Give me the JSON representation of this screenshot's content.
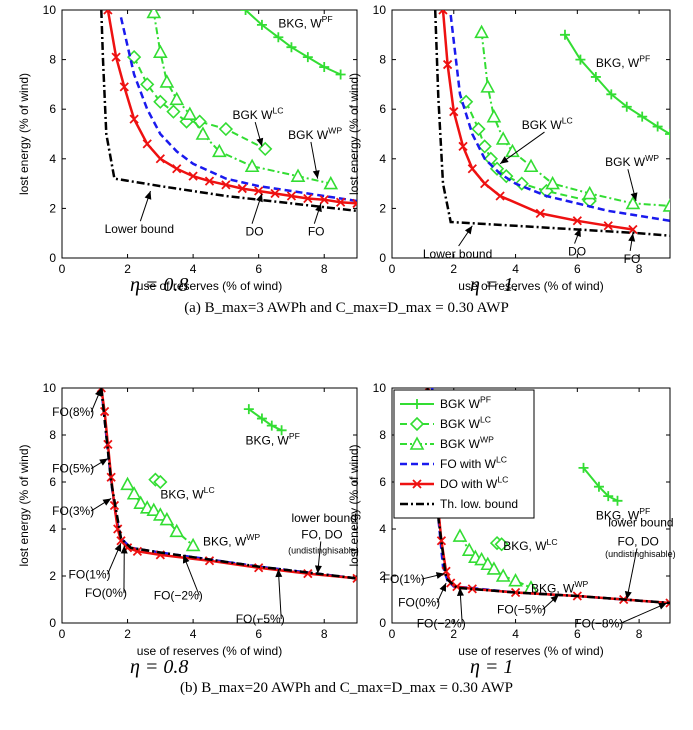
{
  "figure": {
    "caption_a": "(a)  B_max=3 AWPh and C_max=D_max = 0.30 AWP",
    "caption_b": "(b)  B_max=20 AWPh and C_max=D_max = 0.30 AWP",
    "eta_labels": [
      "η = 0.8",
      "η = 1.",
      "η = 0.8",
      "η = 1"
    ]
  },
  "colors": {
    "pf": "#33dd33",
    "lc": "#33dd33",
    "wp": "#33dd33",
    "fo": "#1a1aee",
    "do": "#ee1111",
    "bound": "#000000"
  },
  "chart_data": [
    {
      "type": "line",
      "panel": "a-eta0.8",
      "xlabel": "use of reserves (% of wind)",
      "ylabel": "lost energy (% of wind)",
      "xlim": [
        0,
        9
      ],
      "ylim": [
        0,
        10
      ],
      "xticks": [
        0,
        2,
        4,
        6,
        8
      ],
      "yticks": [
        0,
        2,
        4,
        6,
        8,
        10
      ],
      "series": [
        {
          "key": "pf",
          "x": [
            5.6,
            6.1,
            6.6,
            7.0,
            7.5,
            8.0,
            8.5
          ],
          "y": [
            10,
            9.4,
            8.9,
            8.5,
            8.1,
            7.7,
            7.4
          ]
        },
        {
          "key": "lc",
          "x": [
            2.2,
            2.6,
            3.0,
            3.4,
            3.8,
            4.2,
            5.0,
            6.2
          ],
          "y": [
            8.1,
            7.0,
            6.3,
            5.9,
            5.5,
            5.5,
            5.2,
            4.4
          ]
        },
        {
          "key": "wp",
          "x": [
            2.8,
            3.0,
            3.2,
            3.5,
            3.9,
            4.3,
            4.8,
            5.8,
            7.2,
            8.2
          ],
          "y": [
            9.9,
            8.3,
            7.1,
            6.4,
            5.8,
            5.0,
            4.3,
            3.7,
            3.3,
            3.0
          ]
        },
        {
          "key": "fo",
          "x": [
            1.8,
            2.2,
            2.6,
            3.0,
            3.5,
            4.0,
            5.0,
            6.0,
            7.0,
            8.0,
            9.0
          ],
          "y": [
            9.7,
            7.4,
            6.0,
            5.0,
            4.3,
            3.8,
            3.2,
            2.9,
            2.7,
            2.5,
            2.3
          ]
        },
        {
          "key": "do",
          "x": [
            1.4,
            1.65,
            1.9,
            2.2,
            2.6,
            3.0,
            3.5,
            4.0,
            4.5,
            5.0,
            5.5,
            6.0,
            6.5,
            7.0,
            7.5,
            8.0,
            8.5,
            9.0
          ],
          "y": [
            10,
            8.1,
            6.9,
            5.6,
            4.6,
            4.0,
            3.6,
            3.3,
            3.1,
            2.95,
            2.8,
            2.7,
            2.6,
            2.5,
            2.4,
            2.35,
            2.25,
            2.2
          ]
        },
        {
          "key": "bound",
          "x": [
            1.2,
            1.25,
            1.35,
            1.6,
            3.0,
            5.0,
            7.0,
            9.0
          ],
          "y": [
            10,
            8.0,
            5.0,
            3.2,
            2.9,
            2.5,
            2.2,
            1.9
          ]
        }
      ],
      "annotations": [
        {
          "text": "BKG, W^PF",
          "tx": 6.6,
          "ty": 9.3,
          "ax": null,
          "ay": null
        },
        {
          "text": "BGK W^LC",
          "tx": 5.2,
          "ty": 5.6,
          "ax": 6.1,
          "ay": 4.5
        },
        {
          "text": "BGK W^WP",
          "tx": 6.9,
          "ty": 4.8,
          "ax": 7.8,
          "ay": 3.2
        },
        {
          "text": "Lower bound",
          "tx": 1.3,
          "ty": 1.0,
          "ax": 2.7,
          "ay": 2.7
        },
        {
          "text": "DO",
          "tx": 5.6,
          "ty": 0.9,
          "ax": 6.1,
          "ay": 2.6
        },
        {
          "text": "FO",
          "tx": 7.5,
          "ty": 0.9,
          "ax": 7.9,
          "ay": 2.2
        }
      ]
    },
    {
      "type": "line",
      "panel": "a-eta1",
      "xlabel": "use of reserves (% of wind)",
      "ylabel": "lost energy (% of wind)",
      "xlim": [
        0,
        9
      ],
      "ylim": [
        0,
        10
      ],
      "xticks": [
        0,
        2,
        4,
        6,
        8
      ],
      "yticks": [
        0,
        2,
        4,
        6,
        8,
        10
      ],
      "series": [
        {
          "key": "pf",
          "x": [
            5.6,
            6.1,
            6.6,
            7.1,
            7.6,
            8.1,
            8.6,
            9.0
          ],
          "y": [
            9.0,
            8.0,
            7.3,
            6.6,
            6.1,
            5.7,
            5.3,
            5.0
          ]
        },
        {
          "key": "lc",
          "x": [
            2.4,
            2.8,
            3.0,
            3.2,
            3.4,
            3.7,
            4.2,
            5.0,
            6.4
          ],
          "y": [
            6.3,
            5.2,
            4.5,
            4.0,
            3.6,
            3.3,
            3.0,
            2.7,
            2.3
          ]
        },
        {
          "key": "wp",
          "x": [
            2.9,
            3.1,
            3.3,
            3.6,
            3.9,
            4.5,
            5.2,
            6.4,
            7.8,
            9.0
          ],
          "y": [
            9.1,
            6.9,
            5.7,
            4.8,
            4.3,
            3.7,
            3.0,
            2.6,
            2.2,
            2.1
          ]
        },
        {
          "key": "fo",
          "x": [
            1.9,
            2.2,
            2.6,
            3.0,
            3.5,
            4.0,
            5.0,
            6.0,
            7.0,
            8.0,
            9.0
          ],
          "y": [
            9.8,
            6.6,
            5.0,
            4.0,
            3.4,
            3.0,
            2.5,
            2.2,
            1.9,
            1.7,
            1.5
          ]
        },
        {
          "key": "do",
          "x": [
            1.65,
            1.8,
            2.0,
            2.3,
            2.6,
            3.0,
            3.5,
            4.8,
            6.0,
            7.0,
            7.8
          ],
          "y": [
            10,
            7.8,
            5.9,
            4.5,
            3.6,
            3.0,
            2.5,
            1.8,
            1.5,
            1.3,
            1.15
          ]
        },
        {
          "key": "bound",
          "x": [
            1.4,
            1.5,
            1.65,
            1.9,
            4.0,
            6.0,
            8.0,
            9.0
          ],
          "y": [
            10,
            6.5,
            3.0,
            1.45,
            1.3,
            1.15,
            1.0,
            0.9
          ]
        }
      ],
      "annotations": [
        {
          "text": "BKG, W^PF",
          "tx": 6.6,
          "ty": 7.7,
          "ax": null,
          "ay": null
        },
        {
          "text": "BGK W^LC",
          "tx": 4.2,
          "ty": 5.2,
          "ax": 3.5,
          "ay": 3.8
        },
        {
          "text": "BGK W^WP",
          "tx": 6.9,
          "ty": 3.7,
          "ax": 7.9,
          "ay": 2.3
        },
        {
          "text": "Lower bound",
          "tx": 1.0,
          "ty": 0.0,
          "ax": 2.6,
          "ay": 1.3
        },
        {
          "text": "DO",
          "tx": 5.7,
          "ty": 0.1,
          "ax": 6.1,
          "ay": 1.2
        },
        {
          "text": "FO",
          "tx": 7.5,
          "ty": -0.2,
          "ax": 7.8,
          "ay": 1.0
        }
      ]
    },
    {
      "type": "line",
      "panel": "b-eta0.8",
      "xlabel": "use of reserves (% of wind)",
      "ylabel": "lost energy (% of wind)",
      "xlim": [
        0,
        9
      ],
      "ylim": [
        0,
        10
      ],
      "xticks": [
        0,
        2,
        4,
        6,
        8
      ],
      "yticks": [
        0,
        2,
        4,
        6,
        8,
        10
      ],
      "series": [
        {
          "key": "pf",
          "x": [
            5.7,
            6.1,
            6.4,
            6.7
          ],
          "y": [
            9.1,
            8.7,
            8.4,
            8.2
          ]
        },
        {
          "key": "lc",
          "x": [
            2.85,
            3.0
          ],
          "y": [
            6.1,
            6.0
          ]
        },
        {
          "key": "wp",
          "x": [
            2.0,
            2.2,
            2.4,
            2.6,
            2.8,
            3.0,
            3.2,
            3.5,
            4.0
          ],
          "y": [
            5.9,
            5.5,
            5.1,
            4.9,
            4.8,
            4.6,
            4.4,
            3.9,
            3.3
          ]
        },
        {
          "key": "fo",
          "x": [
            1.2,
            1.5,
            1.65,
            1.8,
            2.1,
            3.0,
            4.5,
            6.0,
            7.5,
            9.0
          ],
          "y": [
            10,
            6.0,
            4.5,
            3.6,
            3.2,
            3.0,
            2.7,
            2.4,
            2.15,
            1.9
          ]
        },
        {
          "key": "do",
          "x": [
            1.2,
            1.3,
            1.4,
            1.5,
            1.6,
            1.7,
            1.8,
            2.0,
            2.3,
            3.0,
            4.5,
            6.0,
            7.5,
            9.0
          ],
          "y": [
            10,
            9.0,
            7.6,
            6.2,
            5.0,
            4.0,
            3.5,
            3.2,
            3.05,
            2.9,
            2.65,
            2.35,
            2.1,
            1.9
          ]
        },
        {
          "key": "bound",
          "x": [
            1.2,
            1.5,
            1.8,
            2.1,
            3.0,
            4.5,
            6.0,
            7.5,
            9.0
          ],
          "y": [
            10,
            6.0,
            3.6,
            3.2,
            3.0,
            2.7,
            2.4,
            2.15,
            1.9
          ]
        }
      ],
      "annotations": [
        {
          "text": "FO(8%)",
          "tx": -0.3,
          "ty": 8.8,
          "ax": 1.2,
          "ay": 10.0
        },
        {
          "text": "FO(5%)",
          "tx": -0.3,
          "ty": 6.4,
          "ax": 1.4,
          "ay": 7.0
        },
        {
          "text": "FO(3%)",
          "tx": -0.3,
          "ty": 4.6,
          "ax": 1.5,
          "ay": 5.3
        },
        {
          "text": "FO(1%)",
          "tx": 0.2,
          "ty": 1.9,
          "ax": 1.8,
          "ay": 3.4
        },
        {
          "text": "FO(0%)",
          "tx": 0.7,
          "ty": 1.1,
          "ax": 1.9,
          "ay": 3.3
        },
        {
          "text": "FO(−2%)",
          "tx": 2.8,
          "ty": 1.0,
          "ax": 3.7,
          "ay": 2.9
        },
        {
          "text": "FO(−5%)",
          "tx": 5.3,
          "ty": 0.0,
          "ax": 6.6,
          "ay": 2.3
        },
        {
          "text": "lower bound",
          "tx": 7.0,
          "ty": 4.3,
          "ax": null,
          "ay": null
        },
        {
          "text": "FO, DO",
          "tx": 7.3,
          "ty": 3.6,
          "ax": 7.8,
          "ay": 2.1
        },
        {
          "text": "(undistinghisable)",
          "tx": 6.9,
          "ty": 2.95,
          "ax": null,
          "ay": null
        },
        {
          "text": "BKG, W^LC",
          "tx": 3.0,
          "ty": 5.3,
          "ax": null,
          "ay": null
        },
        {
          "text": "BKG, W^WP",
          "tx": 4.3,
          "ty": 3.3,
          "ax": null,
          "ay": null
        },
        {
          "text": "BKG, W^PF",
          "tx": 5.6,
          "ty": 7.6,
          "ax": null,
          "ay": null
        }
      ]
    },
    {
      "type": "line",
      "panel": "b-eta1",
      "xlabel": "use of reserves (% of wind)",
      "ylabel": "lost energy (% of wind)",
      "xlim": [
        0,
        9
      ],
      "ylim": [
        0,
        10
      ],
      "xticks": [
        0,
        2,
        4,
        6,
        8
      ],
      "yticks": [
        0,
        2,
        4,
        6,
        8,
        10
      ],
      "legend_position": "top-left",
      "legend": [
        {
          "key": "pf",
          "label": "BGK W^PF"
        },
        {
          "key": "lc",
          "label": "BGK W^LC"
        },
        {
          "key": "wp",
          "label": "BGK W^WP"
        },
        {
          "key": "fo",
          "label": "FO with W^LC"
        },
        {
          "key": "do",
          "label": "DO with W^LC"
        },
        {
          "key": "bound",
          "label": "Th. low. bound"
        }
      ],
      "series": [
        {
          "key": "pf",
          "x": [
            6.2,
            6.7,
            7.0,
            7.3
          ],
          "y": [
            6.6,
            5.8,
            5.4,
            5.2
          ]
        },
        {
          "key": "lc",
          "x": [
            3.4,
            3.55
          ],
          "y": [
            3.4,
            3.35
          ]
        },
        {
          "key": "wp",
          "x": [
            2.2,
            2.5,
            2.7,
            2.9,
            3.1,
            3.3,
            3.6,
            4.0,
            4.5
          ],
          "y": [
            3.7,
            3.1,
            2.8,
            2.7,
            2.5,
            2.3,
            2.0,
            1.8,
            1.5
          ]
        },
        {
          "key": "fo",
          "x": [
            1.3,
            1.5,
            1.65,
            1.8,
            2.0,
            2.5,
            4.0,
            6.0,
            7.5,
            9.0
          ],
          "y": [
            10,
            4.5,
            2.4,
            1.8,
            1.55,
            1.5,
            1.3,
            1.15,
            1.0,
            0.85
          ]
        },
        {
          "key": "do",
          "x": [
            1.15,
            1.3,
            1.45,
            1.6,
            1.75,
            1.9,
            2.1,
            2.6,
            4.0,
            6.0,
            7.5,
            9.0
          ],
          "y": [
            10,
            7.5,
            5.5,
            3.5,
            2.2,
            1.7,
            1.55,
            1.45,
            1.3,
            1.15,
            1.0,
            0.85
          ]
        },
        {
          "key": "bound",
          "x": [
            1.15,
            1.5,
            1.75,
            2.1,
            4.0,
            6.0,
            7.5,
            9.0
          ],
          "y": [
            10,
            4.5,
            1.9,
            1.5,
            1.3,
            1.15,
            1.0,
            0.85
          ]
        }
      ],
      "annotations": [
        {
          "text": "FO(1%)",
          "tx": -0.3,
          "ty": 1.7,
          "ax": 1.7,
          "ay": 2.1
        },
        {
          "text": "FO(0%)",
          "tx": 0.2,
          "ty": 0.7,
          "ax": 1.75,
          "ay": 1.7
        },
        {
          "text": "FO(−2%)",
          "tx": 0.8,
          "ty": -0.2,
          "ax": 2.2,
          "ay": 1.5
        },
        {
          "text": "FO(−5%)",
          "tx": 3.4,
          "ty": 0.4,
          "ax": 5.4,
          "ay": 1.2
        },
        {
          "text": "FO(−8%)",
          "tx": 5.9,
          "ty": -0.2,
          "ax": 8.9,
          "ay": 0.85
        },
        {
          "text": "lower bound",
          "tx": 7.0,
          "ty": 4.1,
          "ax": null,
          "ay": null
        },
        {
          "text": "FO, DO",
          "tx": 7.3,
          "ty": 3.3,
          "ax": 7.6,
          "ay": 1.0
        },
        {
          "text": "(undistinghisable)",
          "tx": 6.9,
          "ty": 2.8,
          "ax": null,
          "ay": null
        },
        {
          "text": "BKG, W^LC",
          "tx": 3.6,
          "ty": 3.1,
          "ax": null,
          "ay": null
        },
        {
          "text": "BKG, W^WP",
          "tx": 4.5,
          "ty": 1.3,
          "ax": null,
          "ay": null
        },
        {
          "text": "BKG, W^PF",
          "tx": 6.6,
          "ty": 4.4,
          "ax": null,
          "ay": null
        }
      ]
    }
  ]
}
